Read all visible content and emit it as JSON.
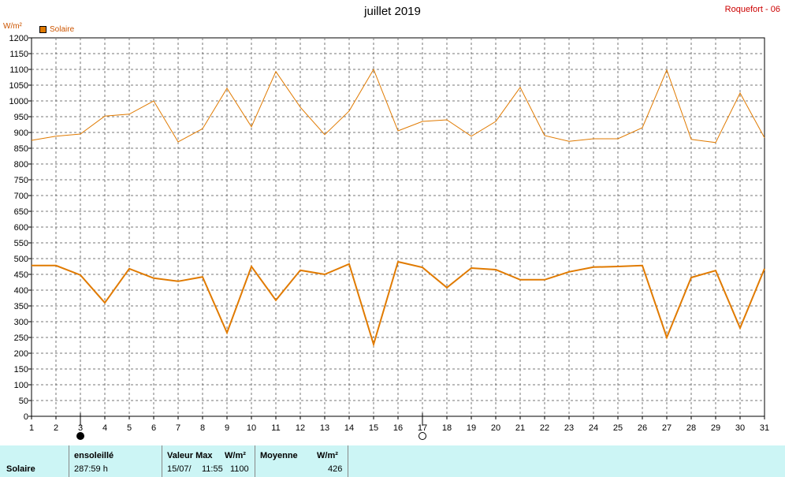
{
  "page": {
    "title": "juillet 2019",
    "station": "Roquefort - 06",
    "unit": "W/m²"
  },
  "legend": {
    "label": "Solaire",
    "color": "#e07a00"
  },
  "moon_phases": [
    {
      "day": 3,
      "phase": "new-moon"
    },
    {
      "day": 17,
      "phase": "full-moon"
    }
  ],
  "chart_data": {
    "type": "line",
    "x": [
      1,
      2,
      3,
      4,
      5,
      6,
      7,
      8,
      9,
      10,
      11,
      12,
      13,
      14,
      15,
      16,
      17,
      18,
      19,
      20,
      21,
      22,
      23,
      24,
      25,
      26,
      27,
      28,
      29,
      30,
      31
    ],
    "ylim": [
      0,
      1200
    ],
    "yticks": [
      0,
      50,
      100,
      150,
      200,
      250,
      300,
      350,
      400,
      450,
      500,
      550,
      600,
      650,
      700,
      750,
      800,
      850,
      900,
      950,
      1000,
      1050,
      1100,
      1150,
      1200
    ],
    "grid": true,
    "series": [
      {
        "role": "max",
        "color": "#e07a00",
        "values": [
          875,
          888,
          895,
          952,
          958,
          1000,
          870,
          912,
          1040,
          918,
          1093,
          980,
          893,
          968,
          1100,
          905,
          935,
          940,
          888,
          935,
          1043,
          890,
          872,
          880,
          880,
          915,
          1098,
          878,
          868,
          1025,
          883
        ]
      },
      {
        "role": "mean",
        "color": "#e07a00",
        "values": [
          478,
          478,
          448,
          360,
          468,
          438,
          428,
          442,
          265,
          475,
          368,
          463,
          450,
          483,
          228,
          490,
          472,
          408,
          470,
          465,
          433,
          433,
          458,
          473,
          475,
          478,
          250,
          440,
          462,
          280,
          468
        ]
      }
    ]
  },
  "footer": {
    "series_label": "Solaire",
    "sunshine": {
      "header": "ensoleillé",
      "value": "287:59 h"
    },
    "max": {
      "header": "Valeur Max",
      "unit": "W/m²",
      "date": "15/07/",
      "time": "11:55",
      "value": "1100"
    },
    "mean": {
      "header": "Moyenne",
      "unit": "W/m²",
      "value": "426"
    }
  }
}
